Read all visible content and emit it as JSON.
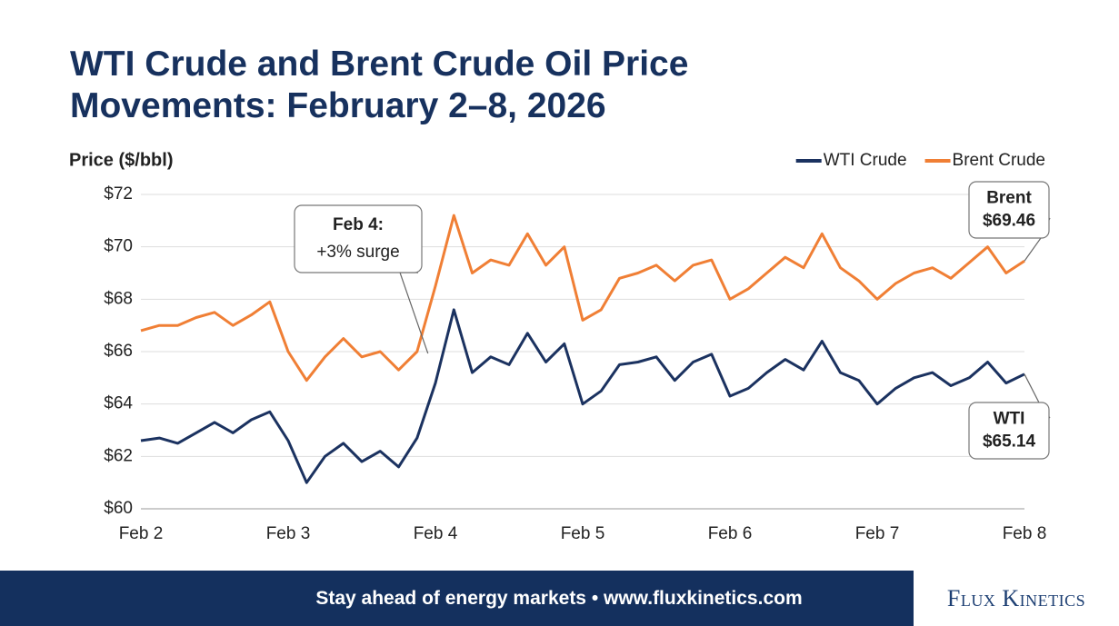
{
  "chart_data": {
    "type": "line",
    "title": "WTI Crude and Brent Crude Oil Price Movements: February 2–8, 2026",
    "y_label": "Price ($/bbl)",
    "categories": [
      "Feb 2",
      null,
      null,
      null,
      null,
      null,
      null,
      null,
      "Feb 3",
      null,
      null,
      null,
      null,
      null,
      null,
      null,
      "Feb 4",
      null,
      null,
      null,
      null,
      null,
      null,
      null,
      "Feb 5",
      null,
      null,
      null,
      null,
      null,
      null,
      null,
      "Feb 6",
      null,
      null,
      null,
      null,
      null,
      null,
      null,
      "Feb 7",
      null,
      null,
      null,
      null,
      null,
      null,
      null,
      "Feb 8"
    ],
    "series": [
      {
        "name": "WTI Crude",
        "color": "#1b3260",
        "values": [
          62.6,
          62.7,
          62.5,
          62.9,
          63.3,
          62.9,
          63.4,
          63.7,
          62.6,
          61.0,
          62.0,
          62.5,
          61.8,
          62.2,
          61.6,
          62.7,
          64.8,
          67.6,
          65.2,
          65.8,
          65.5,
          66.7,
          65.6,
          66.3,
          64.0,
          64.5,
          65.5,
          65.6,
          65.8,
          64.9,
          65.6,
          65.9,
          64.3,
          64.6,
          65.2,
          65.7,
          65.3,
          66.4,
          65.2,
          64.9,
          64.0,
          64.6,
          65.0,
          65.2,
          64.7,
          65.0,
          65.6,
          64.8,
          65.14
        ]
      },
      {
        "name": "Brent Crude",
        "color": "#f07f35",
        "values": [
          66.8,
          67.0,
          67.0,
          67.3,
          67.5,
          67.0,
          67.4,
          67.9,
          66.0,
          64.9,
          65.8,
          66.5,
          65.8,
          66.0,
          65.3,
          66.0,
          68.5,
          71.2,
          69.0,
          69.5,
          69.3,
          70.5,
          69.3,
          70.0,
          67.2,
          67.6,
          68.8,
          69.0,
          69.3,
          68.7,
          69.3,
          69.5,
          68.0,
          68.4,
          69.0,
          69.6,
          69.2,
          70.5,
          69.2,
          68.7,
          68.0,
          68.6,
          69.0,
          69.2,
          68.8,
          69.4,
          70.0,
          69.0,
          69.46
        ]
      }
    ],
    "ylim": [
      60,
      72
    ],
    "yticks": [
      {
        "value": 60,
        "label": "$60"
      },
      {
        "value": 62,
        "label": "$62"
      },
      {
        "value": 64,
        "label": "$64"
      },
      {
        "value": 66,
        "label": "$66"
      },
      {
        "value": 68,
        "label": "$68"
      },
      {
        "value": 70,
        "label": "$70"
      },
      {
        "value": 72,
        "label": "$72"
      }
    ],
    "grid": true,
    "legend": "top-right",
    "annotations": [
      {
        "title": "Feb 4:",
        "text": "+3% surge"
      },
      {
        "title": "Brent",
        "text": "$69.46"
      },
      {
        "title": "WTI",
        "text": "$65.14"
      }
    ]
  },
  "footer": {
    "text": "Stay ahead of energy markets • www.fluxkinetics.com",
    "logo": "Flux Kinetics"
  }
}
